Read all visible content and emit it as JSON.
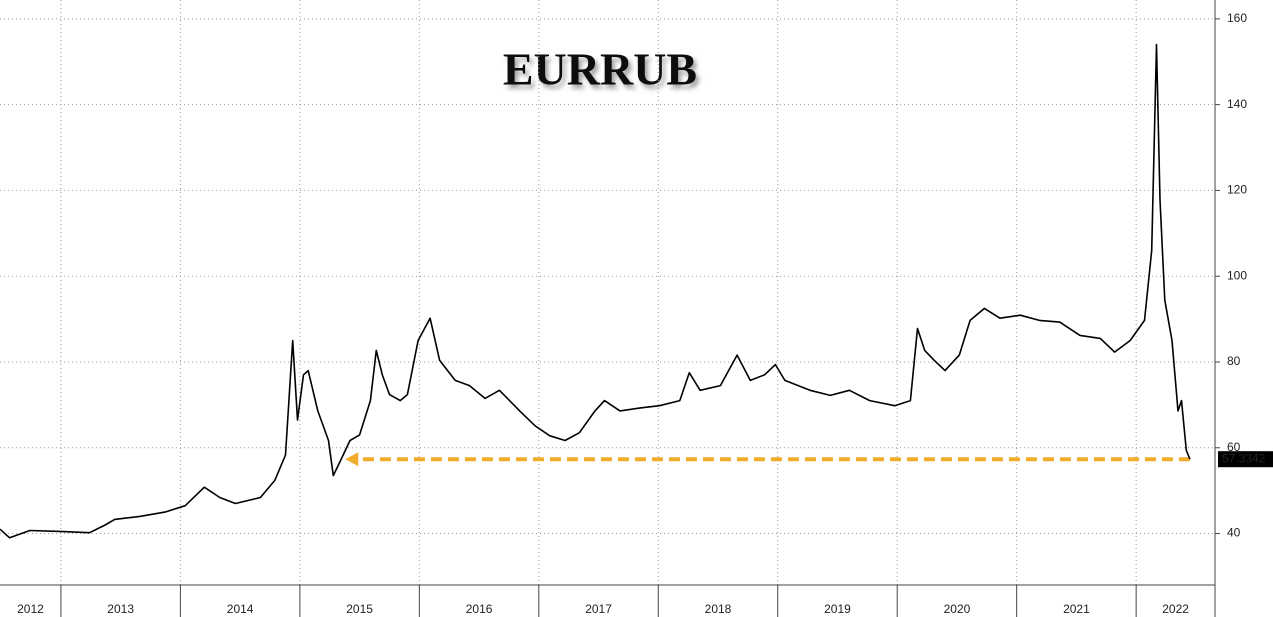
{
  "chart_data": {
    "type": "line",
    "title": "EURRUB",
    "color": "#000000",
    "x": [
      2012.49,
      2012.57,
      2012.74,
      2012.99,
      2013.24,
      2013.37,
      2013.45,
      2013.66,
      2013.87,
      2014.04,
      2014.2,
      2014.33,
      2014.46,
      2014.67,
      2014.79,
      2014.88,
      2014.94,
      2014.98,
      2015.03,
      2015.07,
      2015.15,
      2015.24,
      2015.28,
      2015.34,
      2015.42,
      2015.5,
      2015.59,
      2015.64,
      2015.69,
      2015.75,
      2015.84,
      2015.9,
      2015.99,
      2016.09,
      2016.17,
      2016.3,
      2016.42,
      2016.55,
      2016.67,
      2016.84,
      2016.97,
      2017.09,
      2017.22,
      2017.34,
      2017.47,
      2017.55,
      2017.68,
      2017.85,
      2018.01,
      2018.18,
      2018.26,
      2018.35,
      2018.52,
      2018.66,
      2018.77,
      2018.89,
      2018.98,
      2019.06,
      2019.27,
      2019.44,
      2019.6,
      2019.77,
      2019.98,
      2020.11,
      2020.17,
      2020.23,
      2020.31,
      2020.4,
      2020.52,
      2020.61,
      2020.73,
      2020.86,
      2021.03,
      2021.19,
      2021.36,
      2021.53,
      2021.7,
      2021.82,
      2021.95,
      2022.07,
      2022.13,
      2022.17,
      2022.2,
      2022.24,
      2022.3,
      2022.35,
      2022.38,
      2022.42,
      2022.45
    ],
    "values": [
      41,
      39,
      40.7,
      40.5,
      40.2,
      42,
      43.3,
      44,
      45,
      46.5,
      50.8,
      48.4,
      47,
      48.4,
      52.4,
      58.3,
      85,
      66.5,
      77,
      78,
      68.6,
      61.7,
      53.5,
      57,
      61.7,
      63,
      71,
      82.7,
      77,
      72.4,
      71,
      72.4,
      85,
      90.2,
      80.4,
      75.7,
      74.5,
      71.5,
      73.4,
      68.6,
      65.1,
      62.8,
      61.7,
      63.5,
      68.6,
      71,
      68.6,
      69.3,
      69.8,
      71,
      77.5,
      73.4,
      74.5,
      81.6,
      75.7,
      77,
      79.4,
      75.7,
      73.4,
      72.2,
      73.4,
      71,
      69.8,
      71,
      87.8,
      82.7,
      80.4,
      78,
      81.6,
      89.7,
      92.5,
      90.2,
      90.9,
      89.7,
      89.3,
      86.2,
      85.5,
      82.3,
      85,
      89.7,
      106,
      154,
      117.8,
      94.4,
      85,
      68.6,
      71,
      59.4,
      57.3342
    ],
    "value_labels": [
      null,
      null,
      null,
      null,
      null,
      null,
      null,
      null,
      null,
      null,
      null,
      null,
      null,
      null,
      null,
      null,
      null,
      null,
      null,
      null,
      null,
      null,
      null,
      null,
      null,
      null,
      null,
      null,
      null,
      null,
      null,
      null,
      null,
      null,
      null,
      null,
      null,
      null,
      null,
      null,
      null,
      null,
      null,
      null,
      null,
      null,
      null,
      null,
      null,
      null,
      null,
      null,
      null,
      null,
      null,
      null,
      null,
      null,
      null,
      null,
      null,
      null,
      null,
      null,
      null,
      null,
      null,
      null,
      null,
      null,
      null,
      null,
      null,
      null,
      null,
      null,
      null,
      null,
      null,
      null,
      null,
      null,
      null,
      null,
      null,
      null,
      null,
      null,
      "57.3342"
    ],
    "arrow": {
      "x": [
        2022.45,
        2015.38
      ],
      "y": 57.3342,
      "color": "#f0ac2a"
    },
    "xlim": [
      2012.49,
      2022.66
    ],
    "xticks": [
      2012,
      2013,
      2014,
      2015,
      2016,
      2017,
      2018,
      2019,
      2020,
      2021,
      2022
    ],
    "ylim": [
      28,
      164.4
    ],
    "yticks": [
      40,
      60,
      80,
      100,
      120,
      140,
      160
    ],
    "grid": true
  }
}
